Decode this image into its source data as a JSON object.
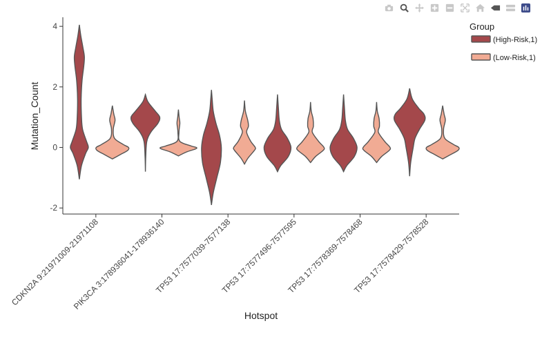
{
  "modebar": [
    {
      "name": "camera-icon"
    },
    {
      "name": "zoom-icon"
    },
    {
      "name": "pan-icon"
    },
    {
      "name": "zoom-in-icon"
    },
    {
      "name": "zoom-out-icon"
    },
    {
      "name": "autoscale-icon"
    },
    {
      "name": "reset-axes-icon"
    },
    {
      "name": "spike-lines-icon"
    },
    {
      "name": "compare-hover-icon"
    },
    {
      "name": "plotly-logo-icon"
    }
  ],
  "colors": {
    "high_risk": "#a4484b",
    "low_risk": "#f1ab94",
    "outline": "#555555",
    "axis": "#333333"
  },
  "chart_data": {
    "type": "violin",
    "title": "",
    "xlabel": "Hotspot",
    "ylabel": "Mutation_Count",
    "ylim": [
      -2.2,
      4.3
    ],
    "yticks": [
      -2,
      0,
      2,
      4
    ],
    "grid": false,
    "legend": {
      "title": "Group",
      "position": "top-right",
      "entries": [
        "(High-Risk,1)",
        "(Low-Risk,1)"
      ]
    },
    "categories": [
      "CDKN2A 9:21971009-21971108",
      "PIK3CA 3:178936041-178936140",
      "TP53 17:7577039-7577138",
      "TP53 17:7577496-7577595",
      "TP53 17:7578369-7578468",
      "TP53 17:7578429-7578528"
    ],
    "series": [
      {
        "name": "(High-Risk,1)",
        "violins": [
          {
            "y": [
              -1.05,
              -0.6,
              -0.2,
              0.0,
              0.2,
              0.6,
              1.0,
              1.6,
              2.2,
              2.7,
              3.0,
              3.3,
              3.7,
              4.05
            ],
            "w": [
              0.0,
              0.12,
              0.35,
              0.5,
              0.4,
              0.18,
              0.12,
              0.1,
              0.15,
              0.25,
              0.28,
              0.2,
              0.08,
              0.0
            ]
          },
          {
            "y": [
              -0.8,
              -0.3,
              0.2,
              0.5,
              0.8,
              1.0,
              1.2,
              1.5,
              1.75
            ],
            "w": [
              0.0,
              0.02,
              0.08,
              0.3,
              0.7,
              0.8,
              0.55,
              0.15,
              0.0
            ]
          },
          {
            "y": [
              -1.9,
              -1.5,
              -1.0,
              -0.5,
              0.0,
              0.4,
              0.8,
              1.2,
              1.6,
              1.9
            ],
            "w": [
              0.0,
              0.1,
              0.3,
              0.5,
              0.55,
              0.45,
              0.25,
              0.1,
              0.04,
              0.0
            ]
          },
          {
            "y": [
              -0.8,
              -0.6,
              -0.3,
              0.0,
              0.3,
              0.6,
              0.9,
              1.3,
              1.75
            ],
            "w": [
              0.0,
              0.18,
              0.6,
              0.75,
              0.55,
              0.22,
              0.1,
              0.05,
              0.0
            ]
          },
          {
            "y": [
              -0.8,
              -0.6,
              -0.3,
              0.0,
              0.3,
              0.6,
              0.9,
              1.3,
              1.75
            ],
            "w": [
              0.0,
              0.18,
              0.6,
              0.75,
              0.55,
              0.22,
              0.1,
              0.05,
              0.0
            ]
          },
          {
            "y": [
              -0.95,
              -0.5,
              0.0,
              0.3,
              0.6,
              0.9,
              1.1,
              1.3,
              1.6,
              1.95
            ],
            "w": [
              0.0,
              0.06,
              0.2,
              0.3,
              0.55,
              0.85,
              0.8,
              0.5,
              0.15,
              0.0
            ]
          }
        ]
      },
      {
        "name": "(Low-Risk,1)",
        "violins": [
          {
            "y": [
              -0.38,
              -0.25,
              -0.1,
              0.0,
              0.1,
              0.3,
              0.6,
              0.9,
              1.1,
              1.38
            ],
            "w": [
              0.0,
              0.4,
              0.85,
              0.9,
              0.6,
              0.12,
              0.05,
              0.15,
              0.08,
              0.0
            ]
          },
          {
            "y": [
              -0.28,
              -0.15,
              -0.05,
              0.0,
              0.05,
              0.2,
              0.5,
              0.8,
              1.0,
              1.25
            ],
            "w": [
              0.0,
              0.45,
              0.95,
              1.0,
              0.7,
              0.08,
              0.03,
              0.08,
              0.04,
              0.0
            ]
          },
          {
            "y": [
              -0.55,
              -0.35,
              -0.1,
              0.0,
              0.2,
              0.5,
              0.7,
              0.9,
              1.2,
              1.55
            ],
            "w": [
              0.0,
              0.2,
              0.55,
              0.6,
              0.35,
              0.12,
              0.22,
              0.18,
              0.05,
              0.0
            ]
          },
          {
            "y": [
              -0.5,
              -0.3,
              -0.1,
              0.0,
              0.2,
              0.5,
              0.7,
              0.95,
              1.2,
              1.5
            ],
            "w": [
              0.0,
              0.28,
              0.7,
              0.75,
              0.45,
              0.1,
              0.16,
              0.14,
              0.04,
              0.0
            ]
          },
          {
            "y": [
              -0.5,
              -0.3,
              -0.1,
              0.0,
              0.2,
              0.5,
              0.7,
              0.95,
              1.2,
              1.5
            ],
            "w": [
              0.0,
              0.28,
              0.7,
              0.75,
              0.45,
              0.1,
              0.16,
              0.14,
              0.04,
              0.0
            ]
          },
          {
            "y": [
              -0.38,
              -0.25,
              -0.1,
              0.0,
              0.1,
              0.3,
              0.6,
              0.9,
              1.1,
              1.38
            ],
            "w": [
              0.0,
              0.4,
              0.85,
              0.9,
              0.6,
              0.12,
              0.05,
              0.15,
              0.08,
              0.0
            ]
          }
        ]
      }
    ]
  }
}
